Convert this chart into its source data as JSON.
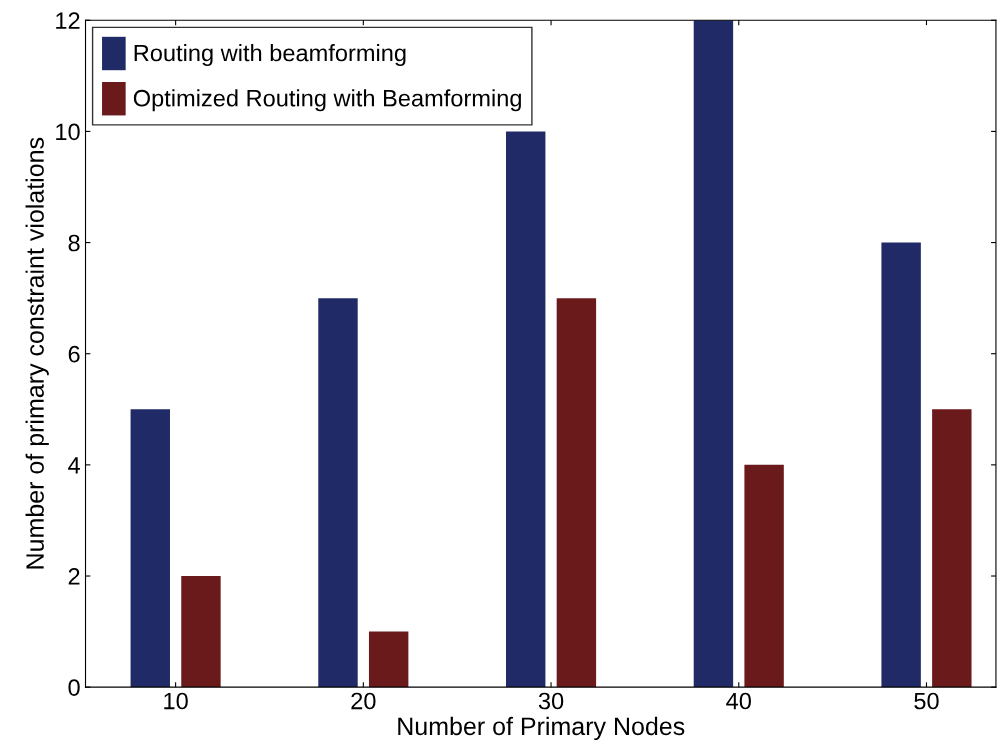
{
  "chart_data": {
    "type": "bar",
    "xlabel": "Number of Primary Nodes",
    "ylabel": "Number of primary constraint violations",
    "categories": [
      "10",
      "20",
      "30",
      "40",
      "50"
    ],
    "series": [
      {
        "name": "Routing with beamforming",
        "color": "#1f2a66",
        "values": [
          5,
          7,
          10,
          12,
          8
        ]
      },
      {
        "name": "Optimized Routing with Beamforming",
        "color": "#6b1a1c",
        "values": [
          2,
          1,
          7,
          4,
          5
        ]
      }
    ],
    "ylim": [
      0,
      12
    ],
    "yticks": [
      0,
      2,
      4,
      6,
      8,
      10,
      12
    ],
    "legend": "top left",
    "grid": false
  }
}
